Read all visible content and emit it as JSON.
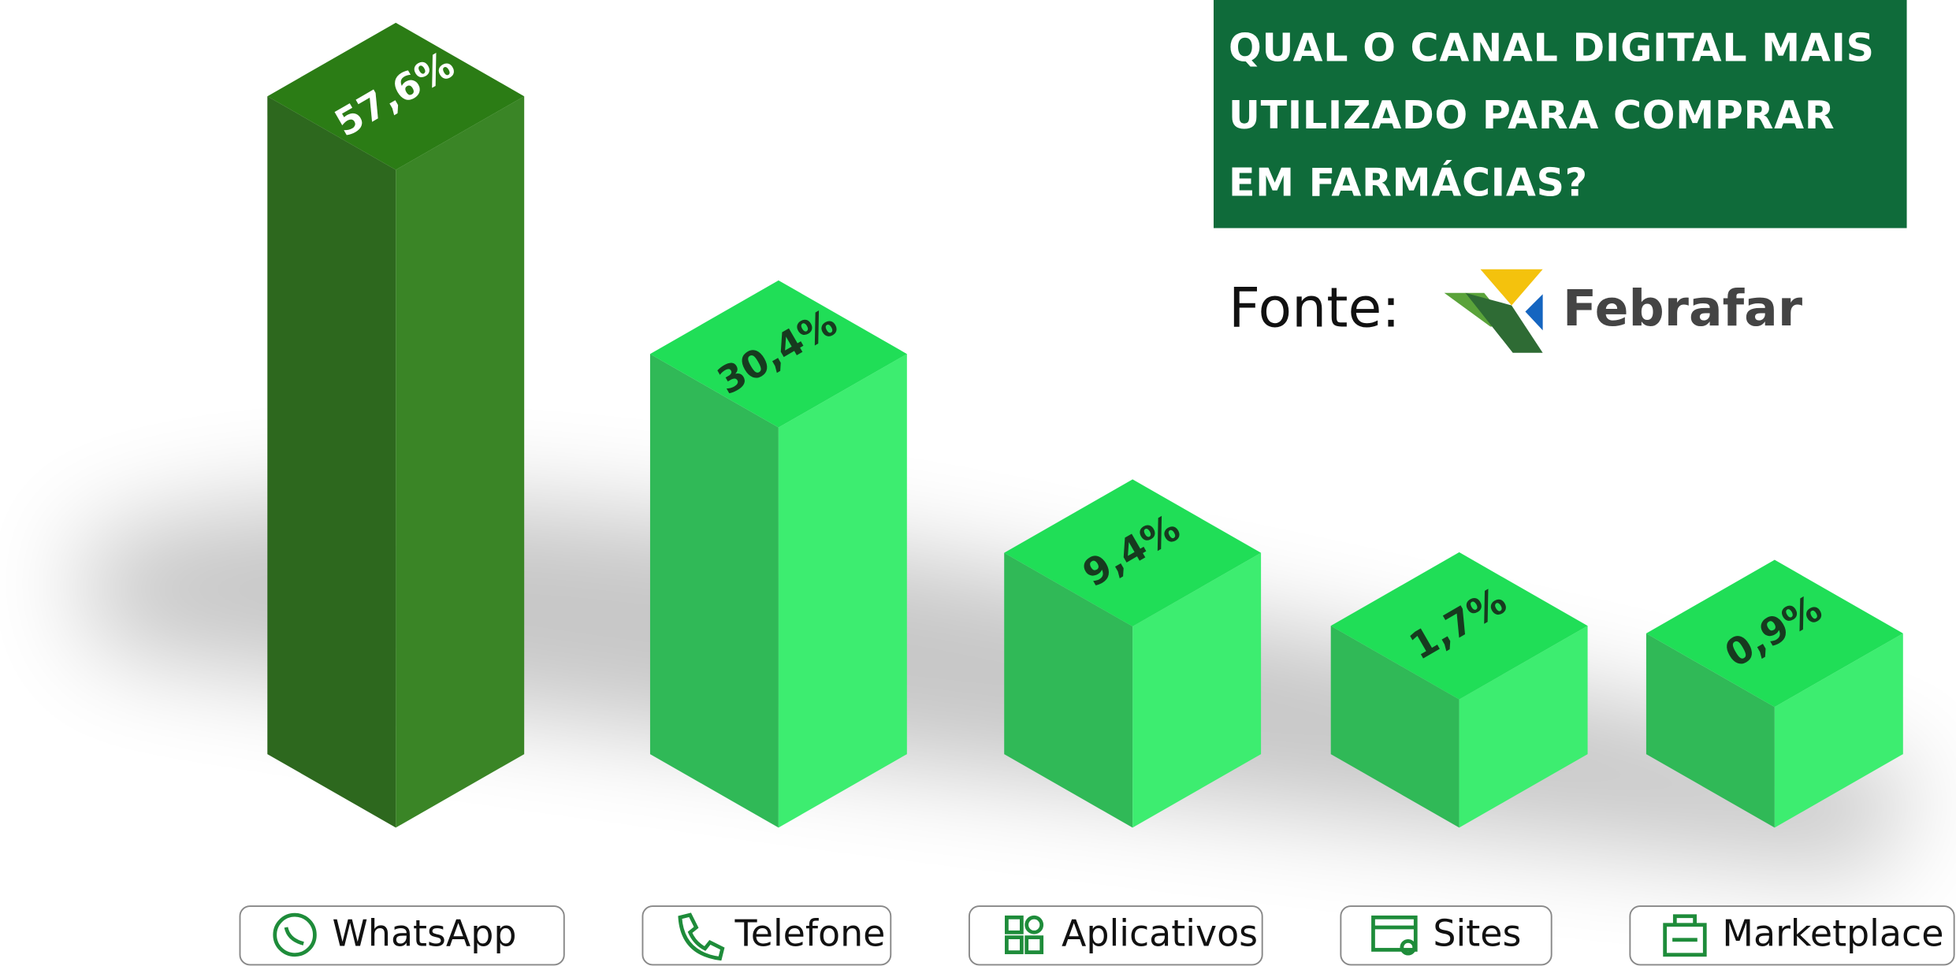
{
  "chart_data": {
    "type": "bar3d",
    "title": "QUAL O CANAL DIGITAL MAIS UTILIZADO PARA COMPRAR EM FARMÁCIAS?",
    "source_label": "Fonte:",
    "source": "Febrafar",
    "categories": [
      "WhatsApp",
      "Telefone",
      "Aplicativos",
      "Sites",
      "Marketplace"
    ],
    "values": [
      57.6,
      30.4,
      9.4,
      1.7,
      0.9
    ],
    "value_labels": [
      "57,6%",
      "30,4%",
      "9,4%",
      "1,7%",
      "0,9%"
    ],
    "colors": [
      "#3a8526",
      "#3ded70",
      "#3ded70",
      "#3ded70",
      "#3ded70"
    ]
  }
}
